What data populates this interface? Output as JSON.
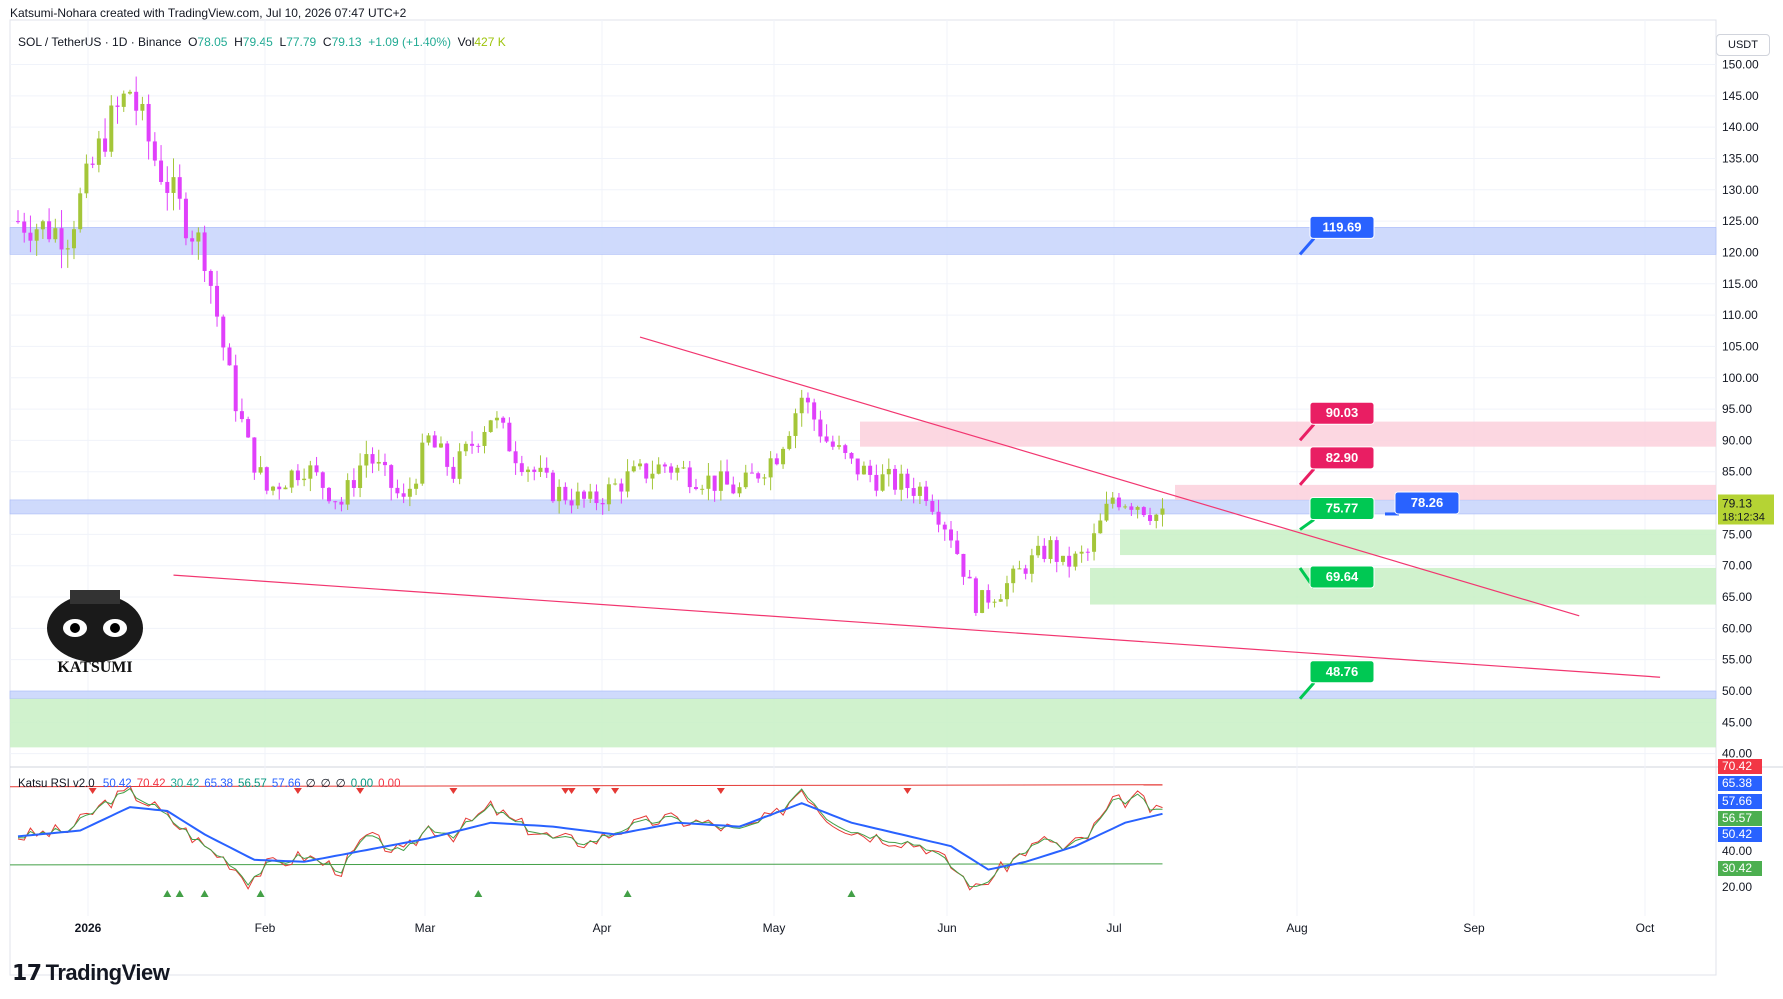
{
  "header": {
    "text": "Katsumi-Nohara created with TradingView.com, Jul 10, 2026 07:47 UTC+2"
  },
  "symbol": {
    "name": "SOL / TetherUS · 1D · Binance",
    "o_label": "O",
    "o": "78.05",
    "h_label": "H",
    "h": "79.45",
    "l_label": "L",
    "l": "77.79",
    "c_label": "C",
    "c": "79.13",
    "change": "+1.09 (+1.40%)",
    "vol_label": "Vol",
    "vol": "427 K"
  },
  "currency": "USDT",
  "last_price": {
    "value": "79.13",
    "countdown": "18:12:34"
  },
  "logo_text": "KATSUMI",
  "brand": {
    "name": "TradingView"
  },
  "colors": {
    "bull": "#a4c639",
    "bear": "#e040fb",
    "trend": "#f23670",
    "blue_zone": "#c7d4fb",
    "pink_zone": "#fbd0dc",
    "green_zone": "#c8f0c4",
    "label_blue": "#2962ff",
    "label_pink": "#e91e63",
    "label_green": "#00c853"
  },
  "chart_data": {
    "type": "candlestick",
    "ylim": [
      38,
      152
    ],
    "yticks": [
      "150.00",
      "145.00",
      "140.00",
      "135.00",
      "130.00",
      "125.00",
      "120.00",
      "115.00",
      "110.00",
      "105.00",
      "100.00",
      "95.00",
      "90.00",
      "85.00",
      "80.00",
      "75.00",
      "70.00",
      "65.00",
      "60.00",
      "55.00",
      "50.00",
      "45.00",
      "40.00"
    ],
    "ytick_values": [
      150,
      145,
      140,
      135,
      130,
      125,
      120,
      115,
      110,
      105,
      100,
      95,
      90,
      85,
      80,
      75,
      70,
      65,
      60,
      55,
      50,
      45,
      40
    ],
    "xticks": [
      "2026",
      "Feb",
      "Mar",
      "Apr",
      "May",
      "Jun",
      "Jul",
      "Aug",
      "Sep",
      "Oct"
    ],
    "close_anchors": [
      [
        0,
        125
      ],
      [
        8,
        123
      ],
      [
        14,
        139
      ],
      [
        18,
        146
      ],
      [
        22,
        135
      ],
      [
        26,
        127
      ],
      [
        30,
        120
      ],
      [
        34,
        100
      ],
      [
        37,
        89
      ],
      [
        40,
        82
      ],
      [
        46,
        86
      ],
      [
        52,
        80
      ],
      [
        56,
        88
      ],
      [
        62,
        80
      ],
      [
        66,
        90
      ],
      [
        70,
        85
      ],
      [
        76,
        94
      ],
      [
        80,
        88
      ],
      [
        86,
        82
      ],
      [
        92,
        80
      ],
      [
        98,
        84
      ],
      [
        104,
        86
      ],
      [
        110,
        84
      ],
      [
        116,
        82
      ],
      [
        122,
        88
      ],
      [
        126,
        97
      ],
      [
        130,
        90
      ],
      [
        134,
        86
      ],
      [
        138,
        84
      ],
      [
        142,
        83
      ],
      [
        146,
        82
      ],
      [
        150,
        75
      ],
      [
        154,
        64
      ],
      [
        158,
        66
      ],
      [
        162,
        70
      ],
      [
        166,
        73
      ],
      [
        168,
        70
      ],
      [
        172,
        72
      ],
      [
        176,
        81
      ],
      [
        180,
        80
      ],
      [
        183,
        78.1
      ],
      [
        184,
        79.13
      ]
    ],
    "price_labels": [
      {
        "value": "119.69",
        "color": "blue"
      },
      {
        "value": "90.03",
        "color": "pink"
      },
      {
        "value": "82.90",
        "color": "pink"
      },
      {
        "value": "78.26",
        "color": "blue"
      },
      {
        "value": "75.77",
        "color": "green"
      },
      {
        "value": "69.64",
        "color": "green"
      },
      {
        "value": "48.76",
        "color": "green"
      }
    ],
    "zones": [
      {
        "from": 119.69,
        "to": 124,
        "color": "blue"
      },
      {
        "from": 78.26,
        "to": 80.5,
        "color": "blue"
      },
      {
        "from": 89,
        "to": 93,
        "color": "pink"
      },
      {
        "from": 80.5,
        "to": 82.9,
        "color": "pink"
      },
      {
        "from": 71.7,
        "to": 75.77,
        "color": "green"
      },
      {
        "from": 63.8,
        "to": 69.64,
        "color": "green"
      },
      {
        "from": 48.76,
        "to": 50,
        "color": "blue"
      },
      {
        "from": 41,
        "to": 48.76,
        "color": "green"
      }
    ],
    "trendlines": [
      {
        "from": [
          100,
          106.5
        ],
        "to": [
          251,
          62
        ]
      },
      {
        "from": [
          25,
          68.5
        ],
        "to": [
          264,
          52.2
        ]
      }
    ],
    "rsi": {
      "name": "Katsu RSI v2.0",
      "values": [
        "50.42",
        "70.42",
        "30.42",
        "65.38",
        "56.57",
        "57.66",
        "∅",
        "∅",
        "∅",
        "0.00",
        "0.00"
      ],
      "value_colors": [
        "#2962ff",
        "#f23645",
        "#22ab94",
        "#2962ff",
        "#089981",
        "#2962ff",
        "#131722",
        "#131722",
        "#131722",
        "#089981",
        "#f23645"
      ],
      "upper": 70.42,
      "lower": 30.42,
      "axis_labels": [
        {
          "value": "70.42",
          "color": "#f23645"
        },
        {
          "value": "65.38",
          "color": "#2962ff"
        },
        {
          "value": "57.66",
          "color": "#2962ff"
        },
        {
          "value": "56.57",
          "color": "#4caf50"
        },
        {
          "value": "50.42",
          "color": "#2962ff"
        },
        {
          "value": "40.00",
          "color": ""
        },
        {
          "value": "30.42",
          "color": "#4caf50"
        },
        {
          "value": "20.00",
          "color": ""
        }
      ],
      "rsi_anchors": [
        [
          0,
          45
        ],
        [
          8,
          48
        ],
        [
          14,
          62
        ],
        [
          18,
          68
        ],
        [
          22,
          60
        ],
        [
          26,
          50
        ],
        [
          30,
          40
        ],
        [
          34,
          32
        ],
        [
          37,
          22
        ],
        [
          40,
          30
        ],
        [
          46,
          35
        ],
        [
          52,
          28
        ],
        [
          56,
          45
        ],
        [
          62,
          36
        ],
        [
          66,
          50
        ],
        [
          70,
          46
        ],
        [
          76,
          60
        ],
        [
          80,
          52
        ],
        [
          86,
          44
        ],
        [
          92,
          42
        ],
        [
          98,
          50
        ],
        [
          104,
          54
        ],
        [
          110,
          52
        ],
        [
          116,
          48
        ],
        [
          122,
          56
        ],
        [
          126,
          70
        ],
        [
          130,
          55
        ],
        [
          134,
          48
        ],
        [
          138,
          45
        ],
        [
          142,
          43
        ],
        [
          146,
          40
        ],
        [
          150,
          30
        ],
        [
          154,
          18
        ],
        [
          158,
          28
        ],
        [
          162,
          38
        ],
        [
          166,
          44
        ],
        [
          168,
          38
        ],
        [
          172,
          45
        ],
        [
          176,
          62
        ],
        [
          180,
          65
        ],
        [
          183,
          57
        ],
        [
          184,
          58
        ]
      ],
      "ma_anchors": [
        [
          0,
          45
        ],
        [
          10,
          48
        ],
        [
          18,
          60
        ],
        [
          24,
          58
        ],
        [
          30,
          46
        ],
        [
          38,
          33
        ],
        [
          46,
          32
        ],
        [
          56,
          38
        ],
        [
          66,
          44
        ],
        [
          76,
          52
        ],
        [
          86,
          50
        ],
        [
          96,
          46
        ],
        [
          106,
          52
        ],
        [
          116,
          50
        ],
        [
          126,
          62
        ],
        [
          134,
          52
        ],
        [
          142,
          46
        ],
        [
          150,
          40
        ],
        [
          156,
          28
        ],
        [
          162,
          32
        ],
        [
          170,
          40
        ],
        [
          178,
          52
        ],
        [
          184,
          56.57
        ]
      ]
    }
  }
}
